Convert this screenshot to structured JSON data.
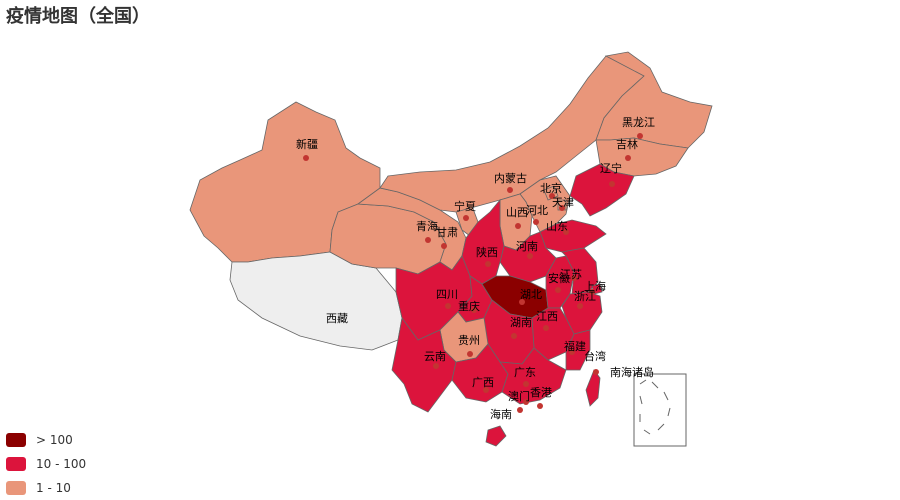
{
  "title": "疫情地图（全国）",
  "colors": {
    "high": "#8b0000",
    "mid": "#dc143c",
    "low": "#e9967a",
    "none": "#eeeeee",
    "dot": "#c23531"
  },
  "legend": [
    {
      "label": "> 100",
      "color": "#8b0000"
    },
    {
      "label": "10 - 100",
      "color": "#dc143c"
    },
    {
      "label": "1 - 10",
      "color": "#e9967a"
    }
  ],
  "provinces": {
    "heilongjiang": "黑龙江",
    "jilin": "吉林",
    "liaoning": "辽宁",
    "neimenggu": "内蒙古",
    "beijing": "北京",
    "tianjin": "天津",
    "hebei": "河北",
    "shanxi": "山西",
    "shandong": "山东",
    "henan": "河南",
    "xinjiang": "新疆",
    "xizang": "西藏",
    "qinghai": "青海",
    "gansu": "甘肃",
    "ningxia": "宁夏",
    "shaanxi": "陕西",
    "sichuan": "四川",
    "chongqing": "重庆",
    "hubei": "湖北",
    "anhui": "安徽",
    "jiangsu": "江苏",
    "shanghai": "上海",
    "zhejiang": "浙江",
    "jiangxi": "江西",
    "hunan": "湖南",
    "guizhou": "贵州",
    "yunnan": "云南",
    "guangxi": "广西",
    "guangdong": "广东",
    "fujian": "福建",
    "taiwan": "台湾",
    "hongkong": "香港",
    "macau": "澳门",
    "hainan": "海南",
    "nanhai": "南海诸岛"
  }
}
